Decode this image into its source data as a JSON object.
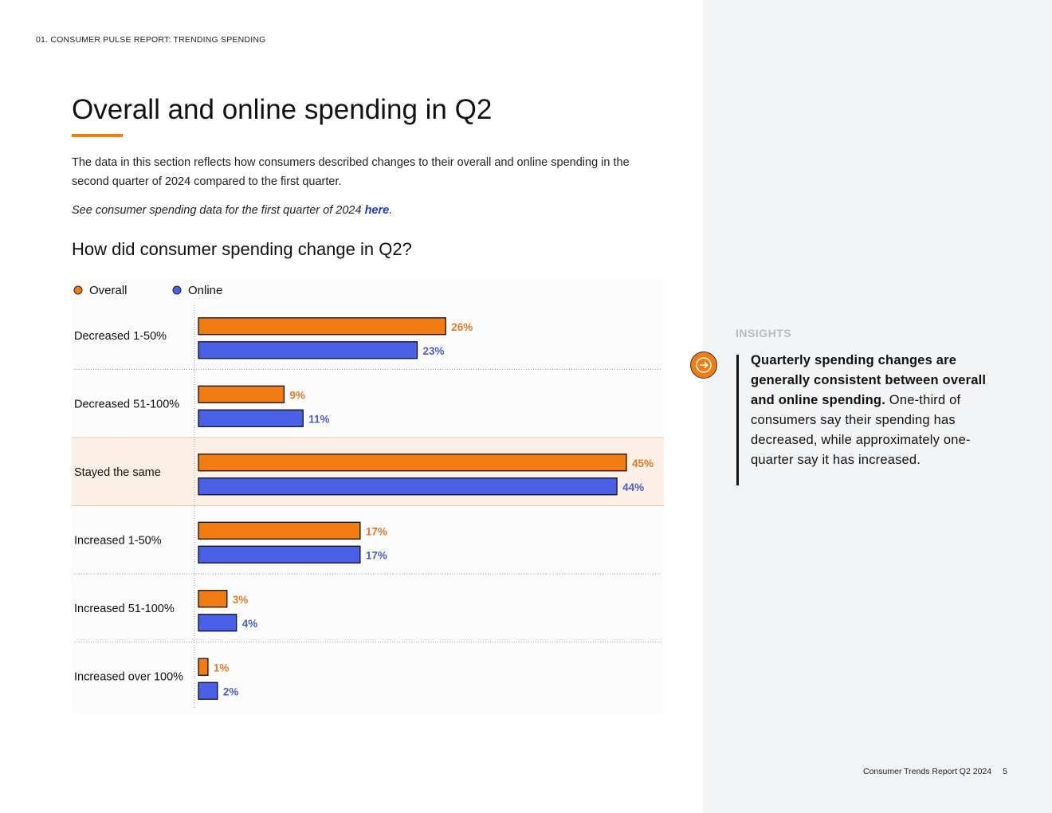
{
  "header": {
    "section_label": "01. CONSUMER PULSE REPORT: TRENDING SPENDING"
  },
  "page": {
    "title": "Overall and online spending in Q2",
    "intro": "The data in this section reflects how consumers described changes to their overall and online spending in the second quarter of 2024 compared to the first quarter.",
    "see_also_text": "See consumer spending data for the first quarter of 2024 ",
    "see_also_link": "here",
    "see_also_end": "."
  },
  "chart_data": {
    "type": "bar",
    "orientation": "horizontal",
    "title": "How did consumer spending change in Q2?",
    "categories": [
      "Decreased 1-50%",
      "Decreased 51-100%",
      "Stayed the same",
      "Increased 1-50%",
      "Increased 51-100%",
      "Increased over 100%"
    ],
    "series": [
      {
        "name": "Overall",
        "values": [
          26,
          9,
          45,
          17,
          3,
          1
        ],
        "color": "#f07c12",
        "label_color": "#e07b25"
      },
      {
        "name": "Online",
        "values": [
          23,
          11,
          44,
          17,
          4,
          2
        ],
        "color": "#4a60e6",
        "label_color": "#4a5fc9"
      }
    ],
    "value_suffix": "%",
    "highlighted_category": "Stayed the same",
    "highlight_color": "#fcefe6",
    "xlim": [
      0,
      45
    ],
    "legend_position": "top-left"
  },
  "insights": {
    "label": "INSIGHTS",
    "headline": "Quarterly spending changes are generally consistent between overall and online spending.",
    "body": "One-third of consumers say their spending has decreased, while approximately one-quarter say it has increased."
  },
  "footer": {
    "report_name": "Consumer Trends Report Q2 2024",
    "page_number": "5"
  },
  "colors": {
    "accent": "#f07c12",
    "panel_bg": "#f3f4f6",
    "link": "#1f3fb3"
  }
}
